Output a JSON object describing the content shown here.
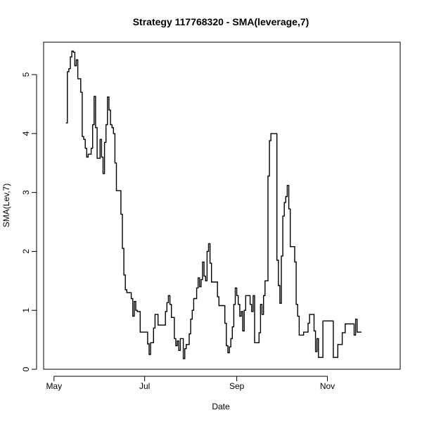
{
  "chart_data": {
    "type": "line",
    "title": "Strategy 117768320 - SMA(leverage,7)",
    "xlabel": "Date",
    "ylabel": "SMA(Lev,7)",
    "x_ticks": [
      {
        "label": "May",
        "date": "2013-05-01"
      },
      {
        "label": "Jul",
        "date": "2013-07-01"
      },
      {
        "label": "Sep",
        "date": "2013-09-01"
      },
      {
        "label": "Nov",
        "date": "2013-11-01"
      }
    ],
    "y_ticks": [
      0,
      1,
      2,
      3,
      4,
      5
    ],
    "xlim": [
      "2013-04-24",
      "2013-12-20"
    ],
    "ylim": [
      0,
      5.55
    ],
    "grid": false,
    "step": true,
    "series": [
      {
        "color": "#000000",
        "points": [
          [
            "2013-05-09",
            4.18
          ],
          [
            "2013-05-10",
            5.05
          ],
          [
            "2013-05-11",
            5.1
          ],
          [
            "2013-05-12",
            5.3
          ],
          [
            "2013-05-13",
            5.4
          ],
          [
            "2013-05-14",
            5.38
          ],
          [
            "2013-05-15",
            5.15
          ],
          [
            "2013-05-16",
            5.25
          ],
          [
            "2013-05-17",
            4.93
          ],
          [
            "2013-05-19",
            4.7
          ],
          [
            "2013-05-20",
            3.95
          ],
          [
            "2013-05-21",
            3.9
          ],
          [
            "2013-05-22",
            3.75
          ],
          [
            "2013-05-23",
            3.6
          ],
          [
            "2013-05-24",
            3.65
          ],
          [
            "2013-05-26",
            3.75
          ],
          [
            "2013-05-27",
            4.15
          ],
          [
            "2013-05-28",
            4.63
          ],
          [
            "2013-05-29",
            4.1
          ],
          [
            "2013-05-30",
            3.58
          ],
          [
            "2013-06-01",
            3.9
          ],
          [
            "2013-06-02",
            3.6
          ],
          [
            "2013-06-03",
            3.32
          ],
          [
            "2013-06-04",
            3.85
          ],
          [
            "2013-06-05",
            4.15
          ],
          [
            "2013-06-06",
            4.62
          ],
          [
            "2013-06-07",
            4.4
          ],
          [
            "2013-06-08",
            4.15
          ],
          [
            "2013-06-09",
            4.1
          ],
          [
            "2013-06-10",
            4.0
          ],
          [
            "2013-06-11",
            3.5
          ],
          [
            "2013-06-12",
            3.03
          ],
          [
            "2013-06-15",
            2.63
          ],
          [
            "2013-06-16",
            2.05
          ],
          [
            "2013-06-17",
            1.6
          ],
          [
            "2013-06-18",
            1.35
          ],
          [
            "2013-06-19",
            1.3
          ],
          [
            "2013-06-22",
            1.2
          ],
          [
            "2013-06-23",
            0.9
          ],
          [
            "2013-06-24",
            1.15
          ],
          [
            "2013-06-25",
            1.0
          ],
          [
            "2013-06-26",
            0.98
          ],
          [
            "2013-06-28",
            0.63
          ],
          [
            "2013-07-03",
            0.43
          ],
          [
            "2013-07-04",
            0.25
          ],
          [
            "2013-07-05",
            0.45
          ],
          [
            "2013-07-07",
            0.7
          ],
          [
            "2013-07-08",
            0.93
          ],
          [
            "2013-07-10",
            0.75
          ],
          [
            "2013-07-15",
            0.98
          ],
          [
            "2013-07-16",
            1.13
          ],
          [
            "2013-07-17",
            1.25
          ],
          [
            "2013-07-18",
            1.1
          ],
          [
            "2013-07-19",
            0.88
          ],
          [
            "2013-07-21",
            0.52
          ],
          [
            "2013-07-22",
            0.4
          ],
          [
            "2013-07-23",
            0.48
          ],
          [
            "2013-07-24",
            0.32
          ],
          [
            "2013-07-25",
            0.52
          ],
          [
            "2013-07-27",
            0.18
          ],
          [
            "2013-07-28",
            0.35
          ],
          [
            "2013-07-29",
            0.42
          ],
          [
            "2013-07-31",
            0.6
          ],
          [
            "2013-08-01",
            0.85
          ],
          [
            "2013-08-02",
            1.0
          ],
          [
            "2013-08-03",
            1.2
          ],
          [
            "2013-08-05",
            1.38
          ],
          [
            "2013-08-06",
            1.55
          ],
          [
            "2013-08-07",
            1.4
          ],
          [
            "2013-08-08",
            1.52
          ],
          [
            "2013-08-09",
            1.82
          ],
          [
            "2013-08-10",
            1.58
          ],
          [
            "2013-08-11",
            1.5
          ],
          [
            "2013-08-12",
            2.0
          ],
          [
            "2013-08-13",
            2.13
          ],
          [
            "2013-08-14",
            1.8
          ],
          [
            "2013-08-15",
            1.48
          ],
          [
            "2013-08-19",
            1.23
          ],
          [
            "2013-08-20",
            1.08
          ],
          [
            "2013-08-24",
            0.78
          ],
          [
            "2013-08-25",
            0.4
          ],
          [
            "2013-08-26",
            0.28
          ],
          [
            "2013-08-27",
            0.38
          ],
          [
            "2013-08-28",
            0.52
          ],
          [
            "2013-08-29",
            0.72
          ],
          [
            "2013-08-30",
            1.1
          ],
          [
            "2013-08-31",
            1.38
          ],
          [
            "2013-09-01",
            1.25
          ],
          [
            "2013-09-02",
            1.1
          ],
          [
            "2013-09-03",
            0.9
          ],
          [
            "2013-09-04",
            0.98
          ],
          [
            "2013-09-05",
            0.65
          ],
          [
            "2013-09-06",
            1.0
          ],
          [
            "2013-09-07",
            1.25
          ],
          [
            "2013-09-10",
            1.1
          ],
          [
            "2013-09-11",
            0.98
          ],
          [
            "2013-09-12",
            1.25
          ],
          [
            "2013-09-13",
            0.45
          ],
          [
            "2013-09-16",
            0.62
          ],
          [
            "2013-09-17",
            1.1
          ],
          [
            "2013-09-18",
            0.93
          ],
          [
            "2013-09-19",
            1.25
          ],
          [
            "2013-09-20",
            1.5
          ],
          [
            "2013-09-22",
            3.28
          ],
          [
            "2013-09-23",
            3.88
          ],
          [
            "2013-09-24",
            4.0
          ],
          [
            "2013-09-28",
            1.85
          ],
          [
            "2013-09-29",
            1.42
          ],
          [
            "2013-09-30",
            1.12
          ],
          [
            "2013-10-01",
            1.92
          ],
          [
            "2013-10-02",
            2.6
          ],
          [
            "2013-10-03",
            2.83
          ],
          [
            "2013-10-04",
            2.93
          ],
          [
            "2013-10-05",
            3.12
          ],
          [
            "2013-10-06",
            2.72
          ],
          [
            "2013-10-07",
            2.08
          ],
          [
            "2013-10-10",
            1.82
          ],
          [
            "2013-10-11",
            1.1
          ],
          [
            "2013-10-12",
            0.9
          ],
          [
            "2013-10-13",
            0.58
          ],
          [
            "2013-10-16",
            0.63
          ],
          [
            "2013-10-19",
            0.78
          ],
          [
            "2013-10-20",
            0.93
          ],
          [
            "2013-10-23",
            0.65
          ],
          [
            "2013-10-24",
            0.3
          ],
          [
            "2013-10-25",
            0.52
          ],
          [
            "2013-10-26",
            0.2
          ],
          [
            "2013-10-29",
            0.82
          ],
          [
            "2013-11-05",
            0.2
          ],
          [
            "2013-11-08",
            0.42
          ],
          [
            "2013-11-11",
            0.62
          ],
          [
            "2013-11-13",
            0.77
          ],
          [
            "2013-11-19",
            0.58
          ],
          [
            "2013-11-20",
            0.85
          ],
          [
            "2013-11-21",
            0.63
          ],
          [
            "2013-11-24",
            0.63
          ]
        ]
      }
    ]
  }
}
